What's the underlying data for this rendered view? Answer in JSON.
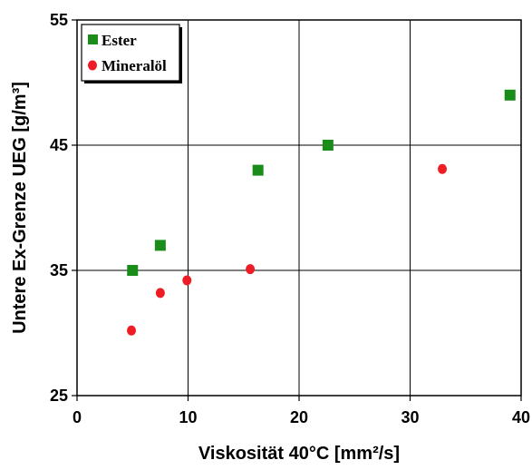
{
  "chart_data": {
    "type": "scatter",
    "title": "",
    "xlabel": "Viskosität 40°C [mm²/s]",
    "ylabel": "Untere Ex-Grenze UEG [g/m³]",
    "xlim": [
      0,
      40
    ],
    "ylim": [
      25,
      55
    ],
    "x_ticks": [
      "0",
      "10",
      "20",
      "30",
      "40"
    ],
    "y_ticks": [
      "25",
      "35",
      "45",
      "55"
    ],
    "grid": true,
    "legend_position": "top-left",
    "series": [
      {
        "name": "Ester",
        "marker": "square",
        "color": "#1a8c1a",
        "points": [
          {
            "x": 5.0,
            "y": 35.0
          },
          {
            "x": 7.5,
            "y": 37.0
          },
          {
            "x": 16.3,
            "y": 43.0
          },
          {
            "x": 22.6,
            "y": 45.0
          },
          {
            "x": 39.0,
            "y": 49.0
          }
        ]
      },
      {
        "name": "Mineralöl",
        "marker": "circle",
        "color": "#ee1c24",
        "points": [
          {
            "x": 4.9,
            "y": 30.2
          },
          {
            "x": 7.5,
            "y": 33.2
          },
          {
            "x": 9.9,
            "y": 34.2
          },
          {
            "x": 15.6,
            "y": 35.1
          },
          {
            "x": 32.9,
            "y": 43.1
          }
        ]
      }
    ]
  }
}
